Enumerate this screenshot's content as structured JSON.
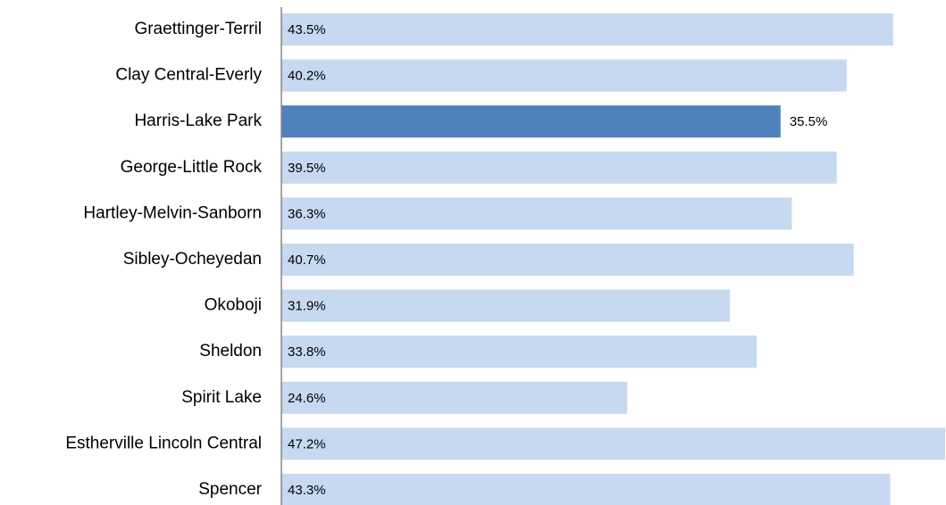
{
  "chart_data": {
    "type": "barh",
    "categories": [
      "Graettinger-Terril",
      "Clay Central-Everly",
      "Harris-Lake Park",
      "George-Little Rock",
      "Hartley-Melvin-Sanborn",
      "Sibley-Ocheyedan",
      "Okoboji",
      "Sheldon",
      "Spirit Lake",
      "Estherville Lincoln Central",
      "Spencer"
    ],
    "values": [
      43.5,
      40.2,
      35.5,
      39.5,
      36.3,
      40.7,
      31.9,
      33.8,
      24.6,
      47.2,
      43.3
    ],
    "value_labels": [
      "43.5%",
      "40.2%",
      "35.5%",
      "39.5%",
      "36.3%",
      "40.7%",
      "31.9%",
      "33.8%",
      "24.6%",
      "47.2%",
      "43.3%"
    ],
    "color": "#c6d9f1",
    "highlight": "Harris-Lake Park",
    "highlight_color": "#4f81bd",
    "xlim": [
      0,
      47.2
    ]
  }
}
